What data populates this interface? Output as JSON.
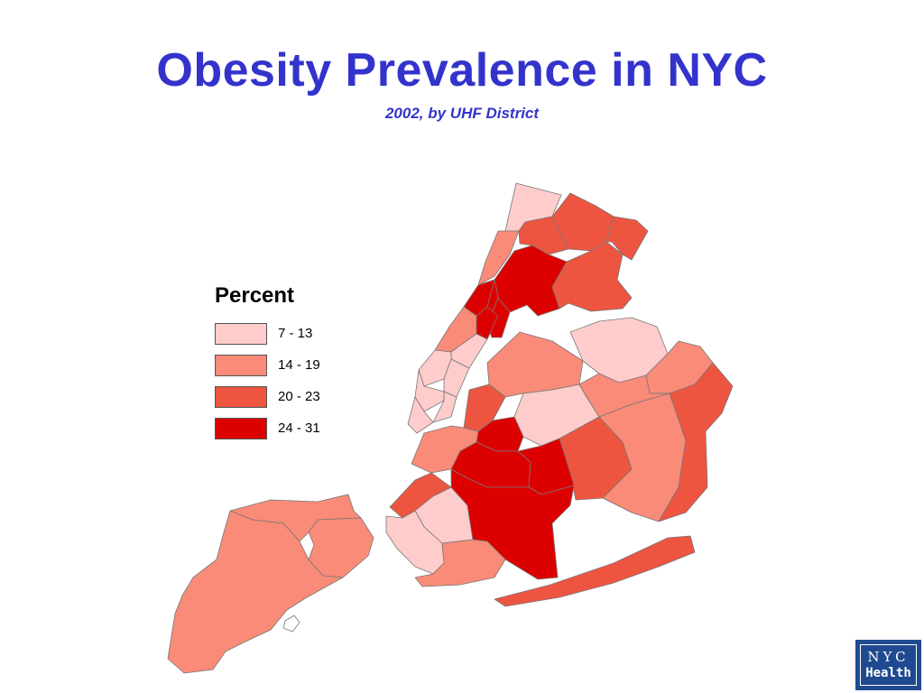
{
  "header": {
    "title": "Obesity Prevalence in NYC",
    "subtitle": "2002, by UHF District"
  },
  "legend": {
    "title": "Percent",
    "items": [
      {
        "label": "7 - 13",
        "color": "#ffcccc"
      },
      {
        "label": "14 - 19",
        "color": "#f98b78"
      },
      {
        "label": "20 - 23",
        "color": "#ee5540"
      },
      {
        "label": "24 - 31",
        "color": "#dd0000"
      }
    ]
  },
  "map": {
    "classes": [
      "7 - 13",
      "14 - 19",
      "20 - 23",
      "24 - 31"
    ],
    "borough_classes": {
      "manhattan": [
        "7 - 13",
        "14 - 19",
        "24 - 31"
      ],
      "bronx": [
        "7 - 13",
        "14 - 19",
        "20 - 23",
        "24 - 31"
      ],
      "brooklyn": [
        "7 - 13",
        "14 - 19",
        "20 - 23",
        "24 - 31"
      ],
      "queens": [
        "7 - 13",
        "14 - 19",
        "20 - 23"
      ],
      "staten_island": [
        "14 - 19"
      ]
    }
  },
  "logo": {
    "line1": "NYC",
    "line2": "Health"
  }
}
